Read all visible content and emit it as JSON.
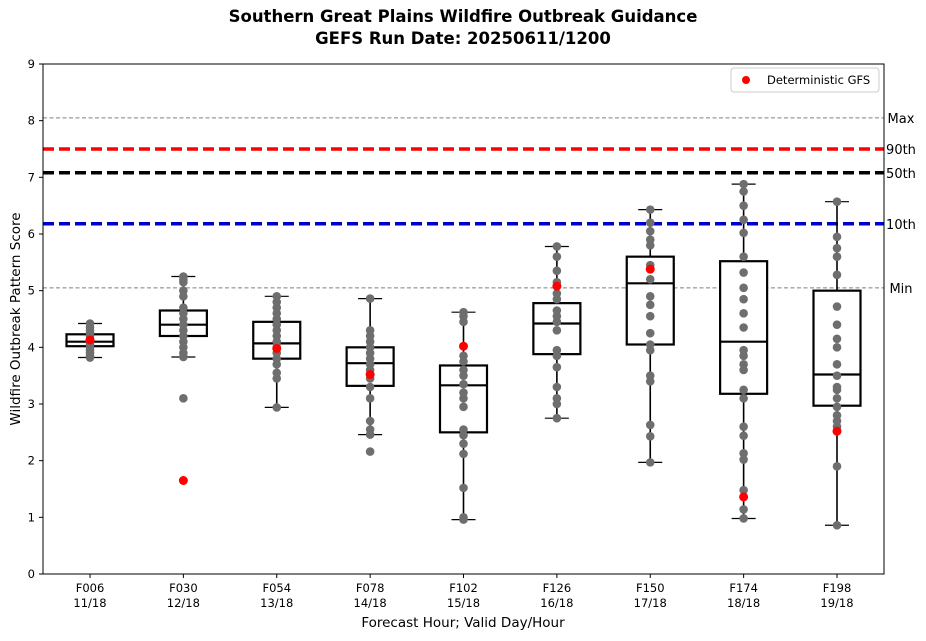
{
  "chart_data": {
    "type": "box",
    "title_line1": "Southern Great Plains Wildfire Outbreak Guidance",
    "title_line2": "GEFS Run Date: 20250611/1200",
    "xlabel": "Forecast Hour; Valid Day/Hour",
    "ylabel": "Wildfire Outbreak Pattern Score",
    "ylim": [
      0,
      9
    ],
    "yticks": [
      "0",
      "1",
      "2",
      "3",
      "4",
      "5",
      "6",
      "7",
      "8",
      "9"
    ],
    "legend": {
      "label": "Deterministic GFS",
      "color": "#ff0000",
      "position": "top-right"
    },
    "reference_lines": [
      {
        "label": "Max",
        "value": 8.05,
        "color": "#808080",
        "style": "thin-dashed"
      },
      {
        "label": "90th",
        "value": 7.5,
        "color": "#ff0000",
        "style": "thick-dashed"
      },
      {
        "label": "50th",
        "value": 7.08,
        "color": "#000000",
        "style": "thick-dashed"
      },
      {
        "label": "10th",
        "value": 6.18,
        "color": "#0000cd",
        "style": "thick-dashed"
      },
      {
        "label": "Min",
        "value": 5.05,
        "color": "#808080",
        "style": "thin-dashed"
      }
    ],
    "member_color": "#6e6e6e",
    "categories": [
      {
        "hour": "F006",
        "valid": "11/18",
        "whisker_low": 3.82,
        "q1": 4.02,
        "median": 4.1,
        "q3": 4.23,
        "whisker_high": 4.42,
        "deterministic": 4.13,
        "members": [
          3.82,
          3.85,
          3.9,
          3.95,
          4.0,
          4.05,
          4.1,
          4.12,
          4.15,
          4.2,
          4.25,
          4.3,
          4.35,
          4.42
        ]
      },
      {
        "hour": "F030",
        "valid": "12/18",
        "whisker_low": 3.83,
        "q1": 4.2,
        "median": 4.4,
        "q3": 4.65,
        "whisker_high": 5.25,
        "deterministic": 1.65,
        "members": [
          3.1,
          3.83,
          3.9,
          4.0,
          4.1,
          4.2,
          4.3,
          4.4,
          4.5,
          4.6,
          4.7,
          4.9,
          5.0,
          5.15,
          5.2,
          5.25
        ]
      },
      {
        "hour": "F054",
        "valid": "13/18",
        "whisker_low": 2.94,
        "q1": 3.8,
        "median": 4.07,
        "q3": 4.45,
        "whisker_high": 4.9,
        "deterministic": 3.98,
        "members": [
          2.94,
          3.45,
          3.55,
          3.7,
          3.8,
          3.9,
          4.0,
          4.1,
          4.2,
          4.3,
          4.4,
          4.5,
          4.6,
          4.7,
          4.8,
          4.9
        ]
      },
      {
        "hour": "F078",
        "valid": "14/18",
        "whisker_low": 2.46,
        "q1": 3.32,
        "median": 3.72,
        "q3": 4.0,
        "whisker_high": 4.86,
        "deterministic": 3.52,
        "members": [
          2.16,
          2.46,
          2.55,
          2.7,
          3.1,
          3.3,
          3.45,
          3.6,
          3.7,
          3.8,
          3.9,
          4.0,
          4.1,
          4.2,
          4.3,
          4.86
        ]
      },
      {
        "hour": "F102",
        "valid": "15/18",
        "whisker_low": 0.96,
        "q1": 2.5,
        "median": 3.33,
        "q3": 3.68,
        "whisker_high": 4.62,
        "deterministic": 4.02,
        "members": [
          0.96,
          1.0,
          1.52,
          2.12,
          2.3,
          2.45,
          2.55,
          2.95,
          3.1,
          3.2,
          3.35,
          3.5,
          3.6,
          3.75,
          3.85,
          4.45,
          4.55,
          4.62
        ]
      },
      {
        "hour": "F126",
        "valid": "16/18",
        "whisker_low": 2.75,
        "q1": 3.88,
        "median": 4.42,
        "q3": 4.78,
        "whisker_high": 5.78,
        "deterministic": 5.08,
        "members": [
          2.75,
          3.0,
          3.1,
          3.3,
          3.65,
          3.85,
          3.95,
          4.3,
          4.45,
          4.55,
          4.65,
          4.85,
          4.95,
          5.15,
          5.35,
          5.6,
          5.78
        ]
      },
      {
        "hour": "F150",
        "valid": "17/18",
        "whisker_low": 1.97,
        "q1": 4.05,
        "median": 5.13,
        "q3": 5.6,
        "whisker_high": 6.43,
        "deterministic": 5.38,
        "members": [
          1.97,
          2.43,
          2.63,
          3.4,
          3.5,
          3.95,
          4.05,
          4.25,
          4.55,
          4.75,
          4.9,
          5.2,
          5.45,
          5.8,
          5.9,
          6.05,
          6.2,
          6.43
        ]
      },
      {
        "hour": "F174",
        "valid": "18/18",
        "whisker_low": 0.98,
        "q1": 3.18,
        "median": 4.1,
        "q3": 5.52,
        "whisker_high": 6.88,
        "deterministic": 1.36,
        "members": [
          0.98,
          1.14,
          1.48,
          2.02,
          2.13,
          2.44,
          2.6,
          3.1,
          3.25,
          3.6,
          3.7,
          3.85,
          3.95,
          4.35,
          4.6,
          4.85,
          5.05,
          5.32,
          5.6,
          6.02,
          6.25,
          6.5,
          6.75,
          6.88
        ]
      },
      {
        "hour": "F198",
        "valid": "19/18",
        "whisker_low": 0.86,
        "q1": 2.97,
        "median": 3.52,
        "q3": 5.0,
        "whisker_high": 6.57,
        "deterministic": 2.52,
        "members": [
          0.86,
          1.9,
          2.6,
          2.7,
          2.8,
          2.95,
          3.1,
          3.25,
          3.3,
          3.5,
          3.7,
          4.0,
          4.15,
          4.4,
          4.72,
          5.28,
          5.6,
          5.75,
          5.95,
          6.57
        ]
      }
    ]
  }
}
